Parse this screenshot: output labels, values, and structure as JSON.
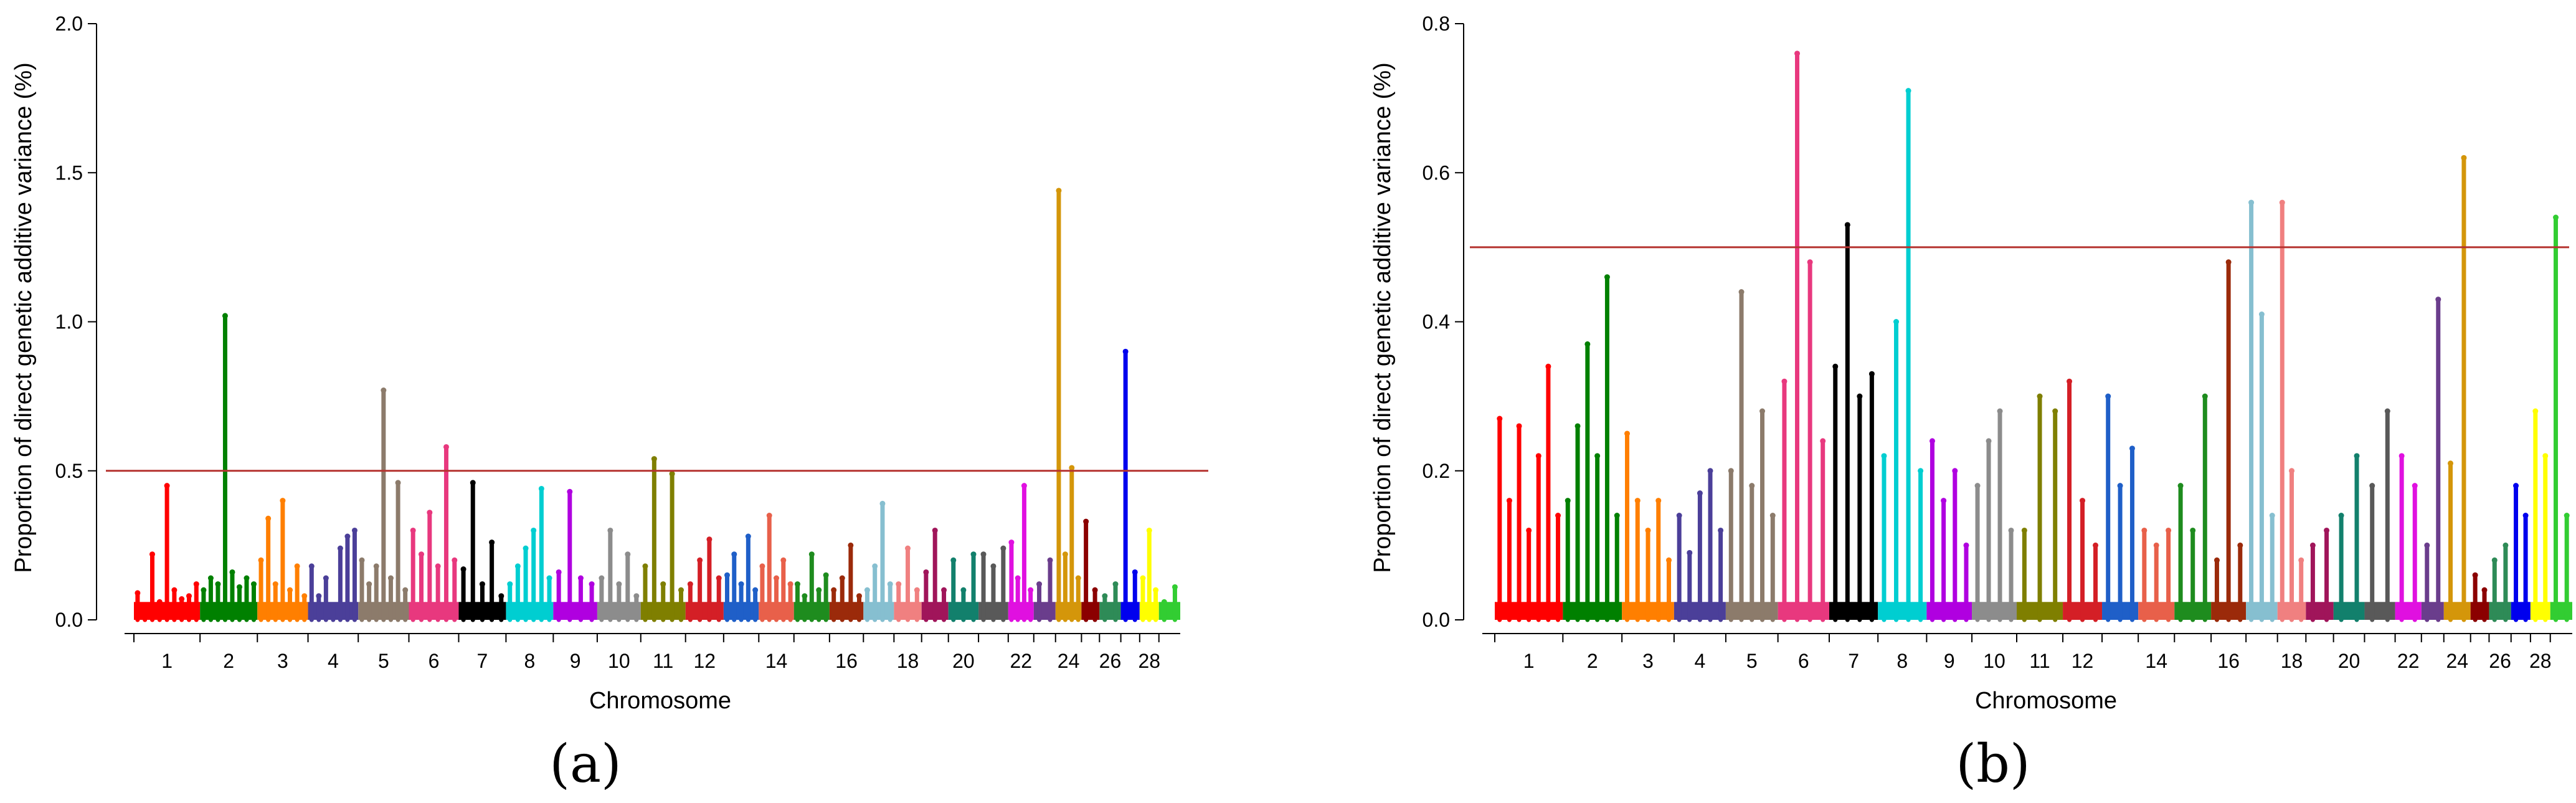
{
  "chart_data": [
    {
      "type": "scatter",
      "panel_label": "(a)",
      "xlabel": "Chromosome",
      "ylabel": "Proportion of direct genetic additive variance (%)",
      "ylim": [
        0,
        2.0
      ],
      "yticks": [
        "0.0",
        "0.5",
        "1.0",
        "1.5",
        "2.0"
      ],
      "threshold": 0.5,
      "x_tick_labels": [
        "1",
        "2",
        "3",
        "4",
        "5",
        "6",
        "7",
        "8",
        "9",
        "10",
        "11",
        "12",
        "14",
        "16",
        "18",
        "20",
        "22",
        "24",
        "26",
        "28"
      ],
      "series": [
        {
          "chromosome": "1",
          "color": "#ff0000",
          "values": [
            0.09,
            0.05,
            0.22,
            0.06,
            0.45,
            0.1,
            0.07,
            0.08,
            0.12
          ]
        },
        {
          "chromosome": "2",
          "color": "#008000",
          "values": [
            0.1,
            0.14,
            0.12,
            1.02,
            0.16,
            0.11,
            0.14,
            0.12
          ]
        },
        {
          "chromosome": "3",
          "color": "#ff7f00",
          "values": [
            0.2,
            0.34,
            0.12,
            0.4,
            0.1,
            0.18,
            0.08
          ]
        },
        {
          "chromosome": "4",
          "color": "#4b3f99",
          "values": [
            0.18,
            0.08,
            0.14,
            0.05,
            0.24,
            0.28,
            0.3
          ]
        },
        {
          "chromosome": "5",
          "color": "#8c7b6b",
          "values": [
            0.2,
            0.12,
            0.18,
            0.77,
            0.14,
            0.46,
            0.1
          ]
        },
        {
          "chromosome": "6",
          "color": "#e8387e",
          "values": [
            0.3,
            0.22,
            0.36,
            0.18,
            0.58,
            0.2
          ]
        },
        {
          "chromosome": "7",
          "color": "#000000",
          "values": [
            0.17,
            0.46,
            0.12,
            0.26,
            0.08
          ]
        },
        {
          "chromosome": "8",
          "color": "#00ced1",
          "values": [
            0.12,
            0.18,
            0.24,
            0.3,
            0.44,
            0.14
          ]
        },
        {
          "chromosome": "9",
          "color": "#b000e0",
          "values": [
            0.16,
            0.43,
            0.14,
            0.12
          ]
        },
        {
          "chromosome": "10",
          "color": "#8c8c8c",
          "values": [
            0.14,
            0.3,
            0.12,
            0.22,
            0.08
          ]
        },
        {
          "chromosome": "11",
          "color": "#7f7f00",
          "values": [
            0.18,
            0.54,
            0.12,
            0.49,
            0.1
          ]
        },
        {
          "chromosome": "12",
          "color": "#d41f26",
          "values": [
            0.12,
            0.2,
            0.27,
            0.14
          ]
        },
        {
          "chromosome": "13",
          "color": "#1f5fc8",
          "values": [
            0.15,
            0.22,
            0.12,
            0.28,
            0.1
          ]
        },
        {
          "chromosome": "14",
          "color": "#e8604a",
          "values": [
            0.18,
            0.35,
            0.14,
            0.2,
            0.12
          ]
        },
        {
          "chromosome": "15",
          "color": "#1e8c1e",
          "values": [
            0.12,
            0.08,
            0.22,
            0.1,
            0.15
          ]
        },
        {
          "chromosome": "16",
          "color": "#9b2a0a",
          "values": [
            0.1,
            0.14,
            0.25,
            0.08
          ]
        },
        {
          "chromosome": "17",
          "color": "#86bfd0",
          "values": [
            0.1,
            0.18,
            0.39,
            0.12
          ]
        },
        {
          "chromosome": "18",
          "color": "#f08080",
          "values": [
            0.12,
            0.24,
            0.1
          ]
        },
        {
          "chromosome": "19",
          "color": "#a0155a",
          "values": [
            0.16,
            0.3,
            0.1
          ]
        },
        {
          "chromosome": "20",
          "color": "#12806c",
          "values": [
            0.2,
            0.1,
            0.22
          ]
        },
        {
          "chromosome": "21",
          "color": "#595959",
          "values": [
            0.22,
            0.18,
            0.24
          ]
        },
        {
          "chromosome": "22",
          "color": "#e010e0",
          "values": [
            0.26,
            0.14,
            0.45,
            0.1
          ]
        },
        {
          "chromosome": "23",
          "color": "#6a3d8c",
          "values": [
            0.12,
            0.2
          ]
        },
        {
          "chromosome": "24",
          "color": "#d4960a",
          "values": [
            1.44,
            0.22,
            0.51,
            0.14
          ]
        },
        {
          "chromosome": "25",
          "color": "#8b0000",
          "values": [
            0.33,
            0.1
          ]
        },
        {
          "chromosome": "26",
          "color": "#2e8b57",
          "values": [
            0.08,
            0.12
          ]
        },
        {
          "chromosome": "27",
          "color": "#0000ee",
          "values": [
            0.9,
            0.16
          ]
        },
        {
          "chromosome": "28",
          "color": "#ffff00",
          "values": [
            0.14,
            0.3,
            0.1
          ]
        },
        {
          "chromosome": "29",
          "color": "#32cd32",
          "values": [
            0.06,
            0.11
          ]
        }
      ]
    },
    {
      "type": "scatter",
      "panel_label": "(b)",
      "xlabel": "Chromosome",
      "ylabel": "Proportion of direct genetic additive variance (%)",
      "ylim": [
        0,
        0.8
      ],
      "yticks": [
        "0.0",
        "0.2",
        "0.4",
        "0.6",
        "0.8"
      ],
      "threshold": 0.5,
      "x_tick_labels": [
        "1",
        "2",
        "3",
        "4",
        "5",
        "6",
        "7",
        "8",
        "9",
        "10",
        "11",
        "12",
        "14",
        "16",
        "18",
        "20",
        "22",
        "24",
        "26",
        "28"
      ],
      "series": [
        {
          "chromosome": "1",
          "color": "#ff0000",
          "values": [
            0.27,
            0.16,
            0.26,
            0.12,
            0.22,
            0.34,
            0.14
          ]
        },
        {
          "chromosome": "2",
          "color": "#008000",
          "values": [
            0.16,
            0.26,
            0.37,
            0.22,
            0.46,
            0.14
          ]
        },
        {
          "chromosome": "3",
          "color": "#ff7f00",
          "values": [
            0.25,
            0.16,
            0.12,
            0.16,
            0.08
          ]
        },
        {
          "chromosome": "4",
          "color": "#4b3f99",
          "values": [
            0.14,
            0.09,
            0.17,
            0.2,
            0.12
          ]
        },
        {
          "chromosome": "5",
          "color": "#8c7b6b",
          "values": [
            0.2,
            0.44,
            0.18,
            0.28,
            0.14
          ]
        },
        {
          "chromosome": "6",
          "color": "#e8387e",
          "values": [
            0.32,
            0.76,
            0.48,
            0.24
          ]
        },
        {
          "chromosome": "7",
          "color": "#000000",
          "values": [
            0.34,
            0.53,
            0.3,
            0.33
          ]
        },
        {
          "chromosome": "8",
          "color": "#00ced1",
          "values": [
            0.22,
            0.4,
            0.71,
            0.2
          ]
        },
        {
          "chromosome": "9",
          "color": "#b000e0",
          "values": [
            0.24,
            0.16,
            0.2,
            0.1
          ]
        },
        {
          "chromosome": "10",
          "color": "#8c8c8c",
          "values": [
            0.18,
            0.24,
            0.28,
            0.12
          ]
        },
        {
          "chromosome": "11",
          "color": "#7f7f00",
          "values": [
            0.12,
            0.3,
            0.28
          ]
        },
        {
          "chromosome": "12",
          "color": "#d41f26",
          "values": [
            0.32,
            0.16,
            0.1
          ]
        },
        {
          "chromosome": "13",
          "color": "#1f5fc8",
          "values": [
            0.3,
            0.18,
            0.23
          ]
        },
        {
          "chromosome": "14",
          "color": "#e8604a",
          "values": [
            0.12,
            0.1,
            0.12
          ]
        },
        {
          "chromosome": "15",
          "color": "#1e8c1e",
          "values": [
            0.18,
            0.12,
            0.3
          ]
        },
        {
          "chromosome": "16",
          "color": "#9b2a0a",
          "values": [
            0.08,
            0.48,
            0.1
          ]
        },
        {
          "chromosome": "17",
          "color": "#86bfd0",
          "values": [
            0.56,
            0.41,
            0.14
          ]
        },
        {
          "chromosome": "18",
          "color": "#f08080",
          "values": [
            0.56,
            0.2,
            0.08
          ]
        },
        {
          "chromosome": "19",
          "color": "#a0155a",
          "values": [
            0.1,
            0.12
          ]
        },
        {
          "chromosome": "20",
          "color": "#12806c",
          "values": [
            0.14,
            0.22
          ]
        },
        {
          "chromosome": "21",
          "color": "#595959",
          "values": [
            0.18,
            0.28
          ]
        },
        {
          "chromosome": "22",
          "color": "#e010e0",
          "values": [
            0.22,
            0.18
          ]
        },
        {
          "chromosome": "23",
          "color": "#6a3d8c",
          "values": [
            0.1,
            0.43
          ]
        },
        {
          "chromosome": "24",
          "color": "#d4960a",
          "values": [
            0.21,
            0.62
          ]
        },
        {
          "chromosome": "25",
          "color": "#8b0000",
          "values": [
            0.06,
            0.04
          ]
        },
        {
          "chromosome": "26",
          "color": "#2e8b57",
          "values": [
            0.08,
            0.1
          ]
        },
        {
          "chromosome": "27",
          "color": "#0000ee",
          "values": [
            0.18,
            0.14
          ]
        },
        {
          "chromosome": "28",
          "color": "#ffff00",
          "values": [
            0.28,
            0.22
          ]
        },
        {
          "chromosome": "29",
          "color": "#32cd32",
          "values": [
            0.54,
            0.14
          ]
        }
      ]
    }
  ]
}
